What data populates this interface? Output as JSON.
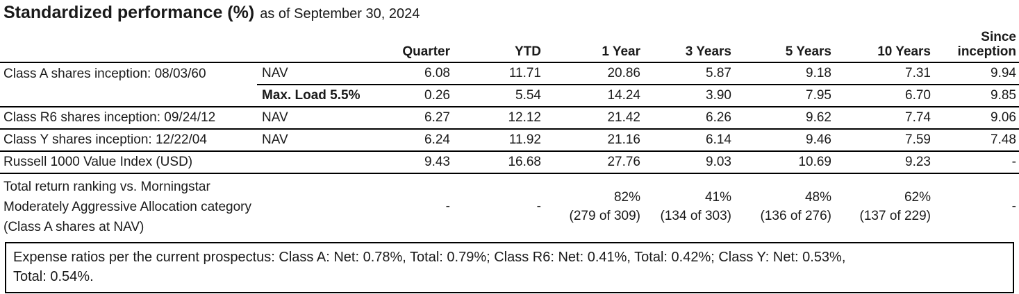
{
  "title": {
    "main": "Standardized performance (%)",
    "as_of": "as of September 30, 2024"
  },
  "table": {
    "columns": [
      "Quarter",
      "YTD",
      "1 Year",
      "3 Years",
      "5 Years",
      "10 Years",
      "Since inception"
    ],
    "rows": [
      {
        "label": "Class A shares inception: 08/03/60",
        "type": "NAV",
        "values": [
          "6.08",
          "11.71",
          "20.86",
          "5.87",
          "9.18",
          "7.31",
          "9.94"
        ]
      },
      {
        "label": "",
        "type": "Max. Load 5.5%",
        "values": [
          "0.26",
          "5.54",
          "14.24",
          "3.90",
          "7.95",
          "6.70",
          "9.85"
        ]
      },
      {
        "label": "Class R6 shares inception: 09/24/12",
        "type": "NAV",
        "values": [
          "6.27",
          "12.12",
          "21.42",
          "6.26",
          "9.62",
          "7.74",
          "9.06"
        ]
      },
      {
        "label": "Class Y shares inception: 12/22/04",
        "type": "NAV",
        "values": [
          "6.24",
          "11.92",
          "21.16",
          "6.14",
          "9.46",
          "7.59",
          "7.48"
        ]
      },
      {
        "label": "Russell 1000 Value Index (USD)",
        "values": [
          "9.43",
          "16.68",
          "27.76",
          "9.03",
          "10.69",
          "9.23",
          "-"
        ]
      }
    ],
    "ranking_row": {
      "label_lines": [
        "Total return ranking vs. Morningstar",
        "Moderately Aggressive Allocation category",
        "(Class A shares at NAV)"
      ],
      "quarter": "-",
      "ytd": "-",
      "cells": [
        {
          "pct": "82%",
          "rank": "(279 of 309)"
        },
        {
          "pct": "41%",
          "rank": "(134 of 303)"
        },
        {
          "pct": "48%",
          "rank": "(136 of 276)"
        },
        {
          "pct": "62%",
          "rank": "(137 of 229)"
        }
      ],
      "since_inception": "-"
    }
  },
  "expense_note": {
    "line1": "Expense ratios per the current prospectus: Class A: Net: 0.78%, Total: 0.79%; Class R6: Net: 0.41%, Total: 0.42%; Class Y: Net: 0.53%,",
    "line2": "Total: 0.54%."
  }
}
